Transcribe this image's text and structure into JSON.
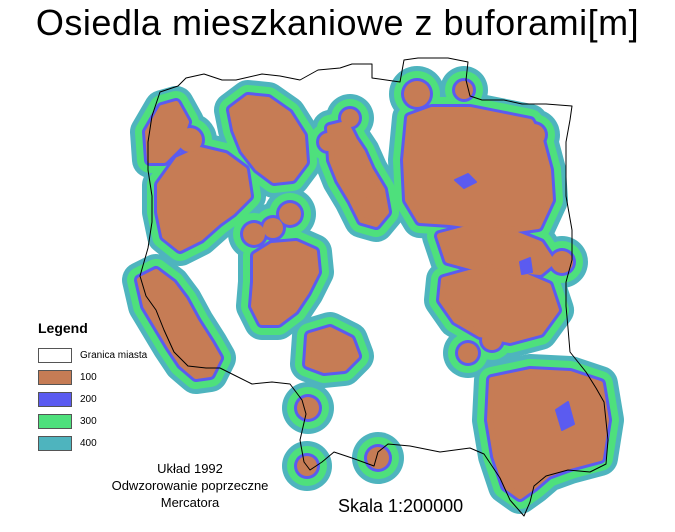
{
  "title": "Osiedla mieszkaniowe z buforami[m]",
  "legend": {
    "title": "Legend",
    "items": [
      {
        "label": "Granica miasta",
        "color": "#ffffff"
      },
      {
        "label": "100",
        "color": "#c67c55"
      },
      {
        "label": "200",
        "color": "#5b5bf0"
      },
      {
        "label": "300",
        "color": "#4ee07c"
      },
      {
        "label": "400",
        "color": "#4eb4be"
      }
    ]
  },
  "projection": {
    "line1": "Układ 1992",
    "line2": "Odwzorowanie poprzeczne",
    "line3": "Mercatora"
  },
  "scale": "Skala 1:200000"
}
